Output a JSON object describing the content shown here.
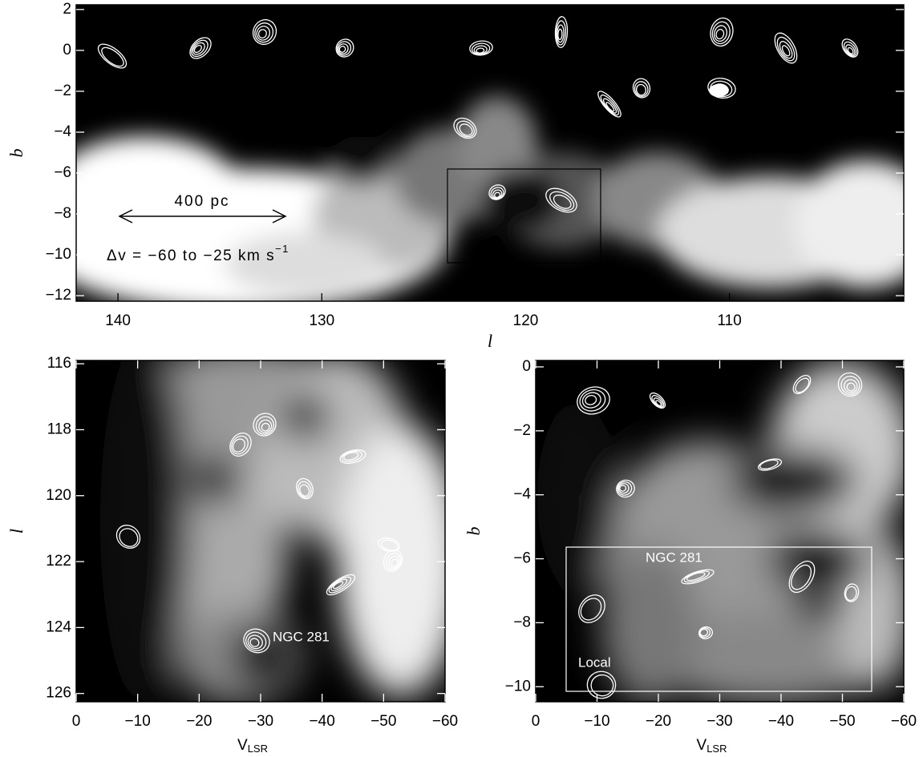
{
  "chart_data": [
    {
      "type": "image",
      "x_label": "l",
      "y_label": "b",
      "xlim": [
        142.05,
        101.45
      ],
      "ylim": [
        -12.27,
        2.23
      ],
      "xticks": [
        140,
        130,
        120,
        110
      ],
      "yticks": [
        2,
        0,
        {
          "value": -2,
          "label": "−2"
        },
        {
          "value": -4,
          "label": "−4"
        },
        {
          "value": -6,
          "label": "−6"
        },
        {
          "value": -8,
          "label": "−8"
        },
        {
          "value": -10,
          "label": "−10"
        },
        {
          "value": -12,
          "label": "−12"
        }
      ],
      "annotations": {
        "scale": "400 pc",
        "velocity_range": {
          "text": "Δv = −60 to −25 km s",
          "superscript": "−1"
        }
      }
    },
    {
      "type": "image",
      "x_label": {
        "text": "V",
        "subscript": "LSR"
      },
      "y_label": "l",
      "xlim": [
        0,
        -60
      ],
      "ylim": [
        126.25,
        115.9
      ],
      "xticks": [
        0,
        {
          "value": -10,
          "label": "−10"
        },
        {
          "value": -20,
          "label": "−20"
        },
        {
          "value": -30,
          "label": "−30"
        },
        {
          "value": -40,
          "label": "−40"
        },
        {
          "value": -50,
          "label": "−50"
        },
        {
          "value": -60,
          "label": "−60"
        }
      ],
      "yticks": [
        116,
        118,
        120,
        122,
        124,
        126
      ],
      "annotations": {
        "source": "NGC 281"
      }
    },
    {
      "type": "image",
      "x_label": {
        "text": "V",
        "subscript": "LSR"
      },
      "y_label": "b",
      "xlim": [
        0,
        -60
      ],
      "ylim": [
        -10.47,
        0.2
      ],
      "xticks": [
        0,
        {
          "value": -10,
          "label": "−10"
        },
        {
          "value": -20,
          "label": "−20"
        },
        {
          "value": -30,
          "label": "−30"
        },
        {
          "value": -40,
          "label": "−40"
        },
        {
          "value": -50,
          "label": "−50"
        },
        {
          "value": -60,
          "label": "−60"
        }
      ],
      "yticks": [
        0,
        {
          "value": -2,
          "label": "−2"
        },
        {
          "value": -4,
          "label": "−4"
        },
        {
          "value": -6,
          "label": "−6"
        },
        {
          "value": -8,
          "label": "−8"
        },
        {
          "value": -10,
          "label": "−10"
        }
      ],
      "annotations": {
        "source": "NGC 281",
        "local": "Local"
      }
    }
  ]
}
